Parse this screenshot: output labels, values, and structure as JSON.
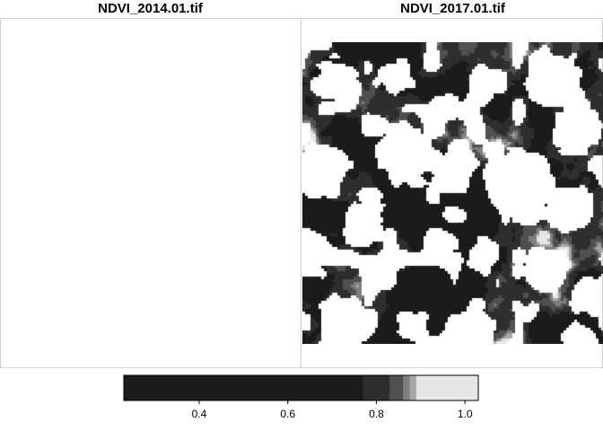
{
  "panels": [
    {
      "title": "NDVI_2014.01.tif",
      "state": "empty"
    },
    {
      "title": "NDVI_2017.01.tif",
      "state": "raster"
    }
  ],
  "chart_data": {
    "type": "heatmap",
    "panels": [
      "NDVI_2014.01.tif",
      "NDVI_2017.01.tif"
    ],
    "colorbar": {
      "range": [
        0.23,
        1.03
      ],
      "ticks": [
        0.4,
        0.6,
        0.8,
        1.0
      ],
      "tick_labels": [
        "0.4",
        "0.6",
        "0.8",
        "1.0"
      ],
      "breaks": [
        {
          "from": 0.23,
          "to": 0.77,
          "color": "#1b1b1b"
        },
        {
          "from": 0.77,
          "to": 0.83,
          "color": "#2e2e2e"
        },
        {
          "from": 0.83,
          "to": 0.86,
          "color": "#505050"
        },
        {
          "from": 0.86,
          "to": 0.875,
          "color": "#7e7e7e"
        },
        {
          "from": 0.875,
          "to": 0.89,
          "color": "#a8a8a8"
        },
        {
          "from": 0.89,
          "to": 1.03,
          "color": "#e6e6e6"
        }
      ],
      "position": "bottom"
    },
    "grid": false
  }
}
